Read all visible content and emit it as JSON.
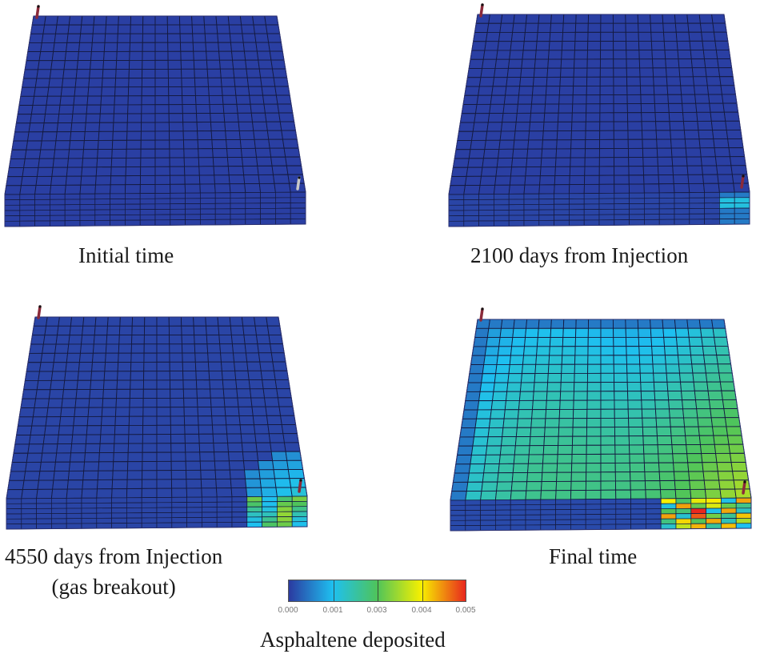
{
  "figure": {
    "panels": [
      {
        "id": "initial",
        "caption": "Initial time",
        "caption_lines": [
          "Initial time"
        ],
        "state": "uniform-low",
        "injector_well_color": "#8b2a3a",
        "producer_well_color": "#c8c8c8"
      },
      {
        "id": "day2100",
        "caption": "2100 days from Injection",
        "caption_lines": [
          "2100 days from Injection"
        ],
        "state": "near-producer-onset",
        "injector_well_color": "#8b2a3a",
        "producer_well_color": "#8b2a3a"
      },
      {
        "id": "day4550",
        "caption": "4550 days from Injection (gas breakout)",
        "caption_lines": [
          "4550 days from Injection",
          "(gas breakout)"
        ],
        "state": "near-producer-growth",
        "injector_well_color": "#8b2a3a",
        "producer_well_color": "#8b2a3a"
      },
      {
        "id": "final",
        "caption": "Final time",
        "caption_lines": [
          "Final time"
        ],
        "state": "widespread",
        "injector_well_color": "#8b2a3a",
        "producer_well_color": "#8b2a3a"
      }
    ],
    "grid": {
      "columns": 20,
      "rows": 20,
      "layers": 6
    },
    "colorbar": {
      "title": "Asphaltene deposited",
      "ticks": [
        "0.000",
        "0.001",
        "0.003",
        "0.004",
        "0.005"
      ],
      "min": 0.0,
      "max": 0.005,
      "colors": [
        "#2b3aa0",
        "#1ec0f0",
        "#4fc45a",
        "#f7f000",
        "#e8271e"
      ]
    }
  }
}
